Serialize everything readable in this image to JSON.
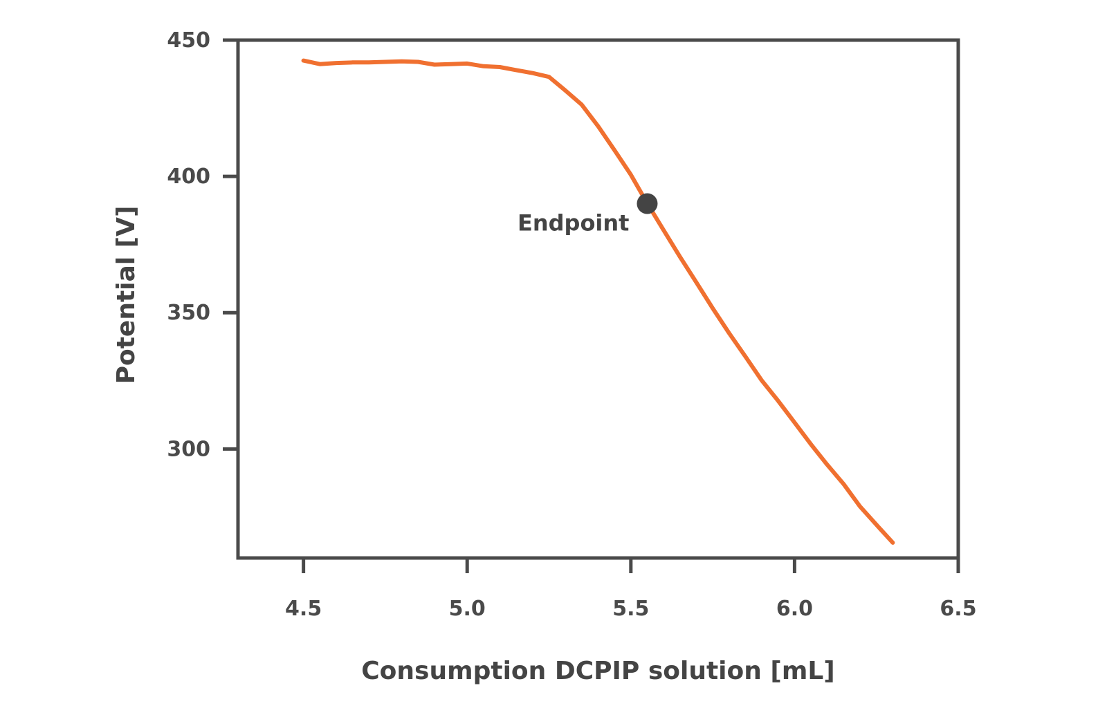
{
  "chart_data": {
    "type": "line",
    "title": "",
    "xlabel": "Consumption DCPIP solution [mL]",
    "ylabel": "Potential [V]",
    "xlim": [
      4.3,
      6.5
    ],
    "ylim": [
      260,
      450
    ],
    "x_ticks": [
      "4.5",
      "5.0",
      "5.5",
      "6.0",
      "6.5"
    ],
    "y_ticks": [
      "450",
      "400",
      "350",
      "300"
    ],
    "grid": false,
    "legend": "none",
    "series": [
      {
        "color": "#f07030",
        "x": [
          4.5,
          4.55,
          4.6,
          4.65,
          4.7,
          4.75,
          4.8,
          4.85,
          4.9,
          4.95,
          5.0,
          5.05,
          5.1,
          5.15,
          5.2,
          5.25,
          5.3,
          5.35,
          5.4,
          5.45,
          5.5,
          5.55,
          5.6,
          5.65,
          5.7,
          5.75,
          5.8,
          5.85,
          5.9,
          5.95,
          6.0,
          6.05,
          6.1,
          6.15,
          6.2,
          6.25,
          6.3
        ],
        "y": [
          442.5,
          441.2,
          441.6,
          441.8,
          441.8,
          442.0,
          442.2,
          442.0,
          441.0,
          441.2,
          441.4,
          440.4,
          440.1,
          439.0,
          437.9,
          436.5,
          431.5,
          426.3,
          418.4,
          409.6,
          400.6,
          390.1,
          380.3,
          370.5,
          361.1,
          351.6,
          342.5,
          333.9,
          325.1,
          317.6,
          309.7,
          301.7,
          294.2,
          287.1,
          278.9,
          272.2,
          265.6
        ]
      }
    ],
    "annotations": [
      {
        "text": "Endpoint",
        "x": 5.55,
        "y": 390,
        "marker_color": "#444444"
      }
    ]
  }
}
